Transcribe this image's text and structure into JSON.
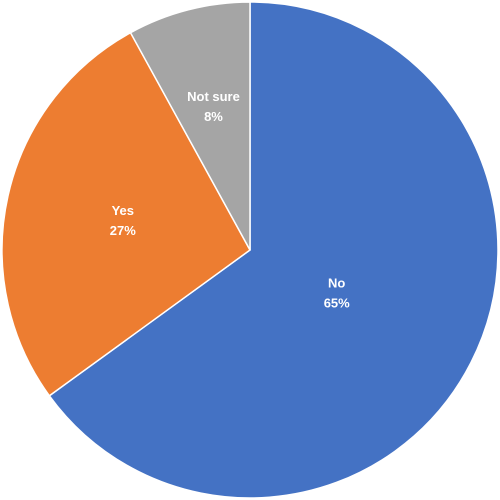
{
  "chart_data": {
    "type": "pie",
    "categories": [
      "No",
      "Yes",
      "Not sure"
    ],
    "values": [
      65,
      27,
      8
    ],
    "value_labels": [
      "65%",
      "27%",
      "8%"
    ],
    "colors": [
      "#4472c4",
      "#ed7d31",
      "#a5a5a5"
    ]
  }
}
